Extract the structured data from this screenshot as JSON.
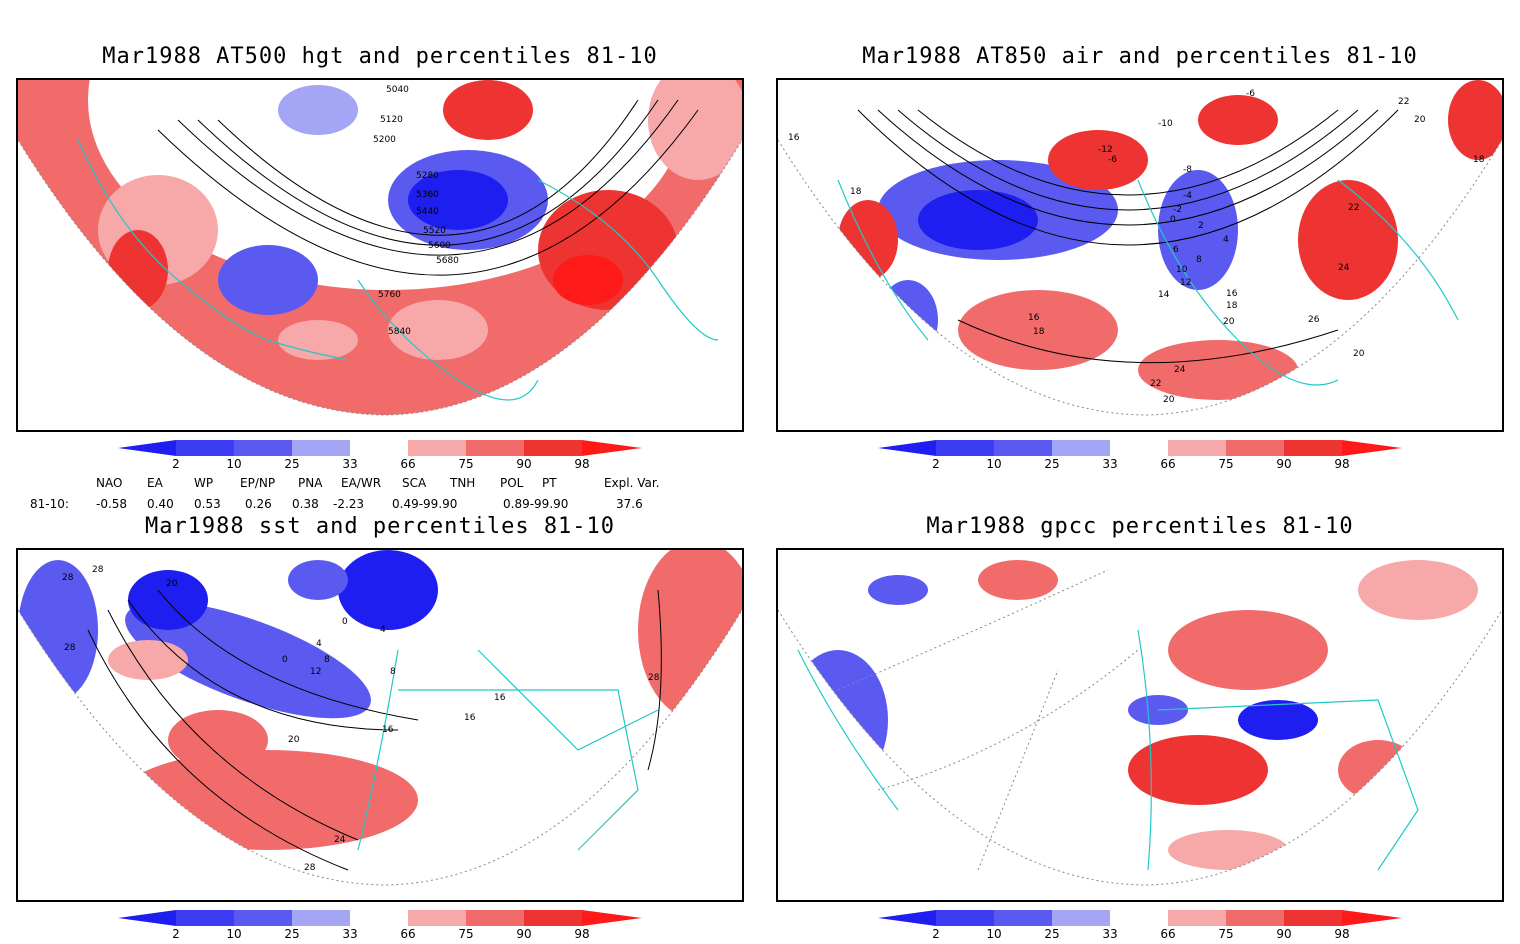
{
  "colors": {
    "blue_dark": "#1e1ef0",
    "blue_mid": "#5a5af0",
    "blue_light": "#a5a5f5",
    "red_light": "#f7a8a8",
    "red_mid": "#f26b6b",
    "red_dark": "#ee3333",
    "red_deep": "#ff1a1a",
    "coast": "#22c8c8",
    "grid": "#888888"
  },
  "panels": [
    {
      "title": "Mar1988 AT500 hgt and percentiles 81-10",
      "contour_labels": [
        "5040",
        "5120",
        "5200",
        "5280",
        "5360",
        "5440",
        "5520",
        "5600",
        "5680",
        "5760",
        "5840"
      ]
    },
    {
      "title": "Mar1988 AT850 air and percentiles 81-10",
      "contour_labels": [
        "-6",
        "-10",
        "-12",
        "-8",
        "-6",
        "-4",
        "-2",
        "0",
        "2",
        "4",
        "6",
        "8",
        "10",
        "12",
        "14",
        "16",
        "16",
        "18",
        "18",
        "20",
        "20",
        "20",
        "22",
        "22",
        "24",
        "24",
        "26",
        "18",
        "16",
        "18",
        "22",
        "20"
      ]
    },
    {
      "title": "Mar1988 sst and percentiles 81-10",
      "contour_labels": [
        "28",
        "28",
        "28",
        "20",
        "0",
        "4",
        "8",
        "12",
        "0",
        "4",
        "8",
        "16",
        "16",
        "16",
        "20",
        "24",
        "28",
        "28"
      ]
    },
    {
      "title": "Mar1988 gpcc percentiles 81-10",
      "contour_labels": []
    }
  ],
  "colorbar": {
    "labels": [
      "2",
      "10",
      "25",
      "33",
      "66",
      "75",
      "90",
      "98"
    ]
  },
  "indices": {
    "headers": [
      "NAO",
      "EA",
      "WP",
      "EP/NP",
      "PNA",
      "EA/WR",
      "SCA",
      "TNH",
      "POL",
      "PT",
      "Expl. Var."
    ],
    "row_label": "81-10:",
    "values": [
      "-0.58",
      "0.40",
      "0.53",
      "0.26",
      "0.38",
      "-2.23",
      "0.49-99.90",
      "0.89-99.90",
      "37.6"
    ]
  }
}
